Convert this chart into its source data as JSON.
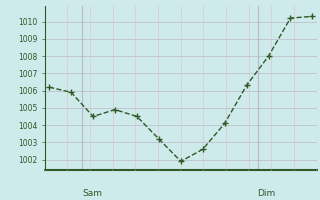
{
  "x": [
    0,
    1,
    2,
    3,
    4,
    5,
    6,
    7,
    8,
    9,
    10,
    11,
    12
  ],
  "y": [
    1006.2,
    1005.9,
    1004.5,
    1004.9,
    1004.5,
    1003.2,
    1001.9,
    1002.6,
    1004.1,
    1006.3,
    1008.0,
    1010.2,
    1010.3
  ],
  "sam_x": 1.5,
  "dim_x": 9.5,
  "yticks": [
    1002,
    1003,
    1004,
    1005,
    1006,
    1007,
    1008,
    1009,
    1010
  ],
  "ylim": [
    1001.4,
    1010.9
  ],
  "xlim": [
    -0.2,
    12.2
  ],
  "line_color": "#2d5a27",
  "marker_color": "#2d5a27",
  "bg_color": "#ceeaea",
  "grid_color_major": "#b8b8c8",
  "grid_color_minor": "#dcc8c8",
  "axis_color": "#2d5a27",
  "tick_label_color": "#2d5a27",
  "day_label_color": "#2d5a27",
  "sam_label": "Sam",
  "dim_label": "Dim",
  "n_vgrid": 12
}
